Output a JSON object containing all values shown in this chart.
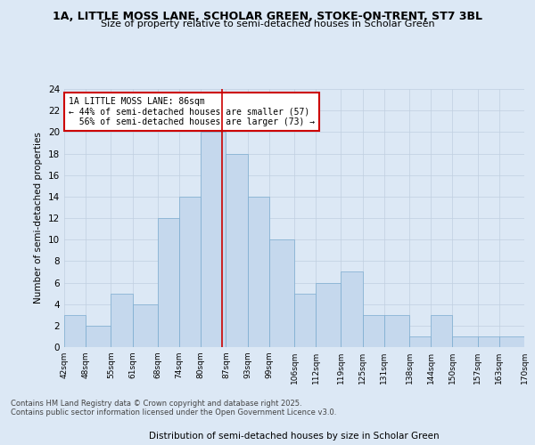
{
  "title": "1A, LITTLE MOSS LANE, SCHOLAR GREEN, STOKE-ON-TRENT, ST7 3BL",
  "subtitle": "Size of property relative to semi-detached houses in Scholar Green",
  "xlabel": "Distribution of semi-detached houses by size in Scholar Green",
  "ylabel": "Number of semi-detached properties",
  "footer_line1": "Contains HM Land Registry data © Crown copyright and database right 2025.",
  "footer_line2": "Contains public sector information licensed under the Open Government Licence v3.0.",
  "bins": [
    42,
    48,
    55,
    61,
    68,
    74,
    80,
    87,
    93,
    99,
    106,
    112,
    119,
    125,
    131,
    138,
    144,
    150,
    157,
    163,
    170
  ],
  "bin_labels": [
    "42sqm",
    "48sqm",
    "55sqm",
    "61sqm",
    "68sqm",
    "74sqm",
    "80sqm",
    "87sqm",
    "93sqm",
    "99sqm",
    "106sqm",
    "112sqm",
    "119sqm",
    "125sqm",
    "131sqm",
    "138sqm",
    "144sqm",
    "150sqm",
    "157sqm",
    "163sqm",
    "170sqm"
  ],
  "counts": [
    3,
    2,
    5,
    4,
    12,
    14,
    20,
    18,
    14,
    10,
    5,
    6,
    7,
    3,
    3,
    1,
    3,
    1,
    1,
    1
  ],
  "bar_color": "#c5d8ed",
  "bar_edge_color": "#7aabcf",
  "property_size": 86,
  "property_label": "1A LITTLE MOSS LANE: 86sqm",
  "pct_smaller": 44,
  "count_smaller": 57,
  "pct_larger": 56,
  "count_larger": 73,
  "vline_color": "#cc0000",
  "annotation_box_color": "#cc0000",
  "grid_color": "#c0cfe0",
  "background_color": "#dce8f5",
  "ylim": [
    0,
    24
  ],
  "yticks": [
    0,
    2,
    4,
    6,
    8,
    10,
    12,
    14,
    16,
    18,
    20,
    22,
    24
  ],
  "title_fontsize": 9,
  "subtitle_fontsize": 8
}
